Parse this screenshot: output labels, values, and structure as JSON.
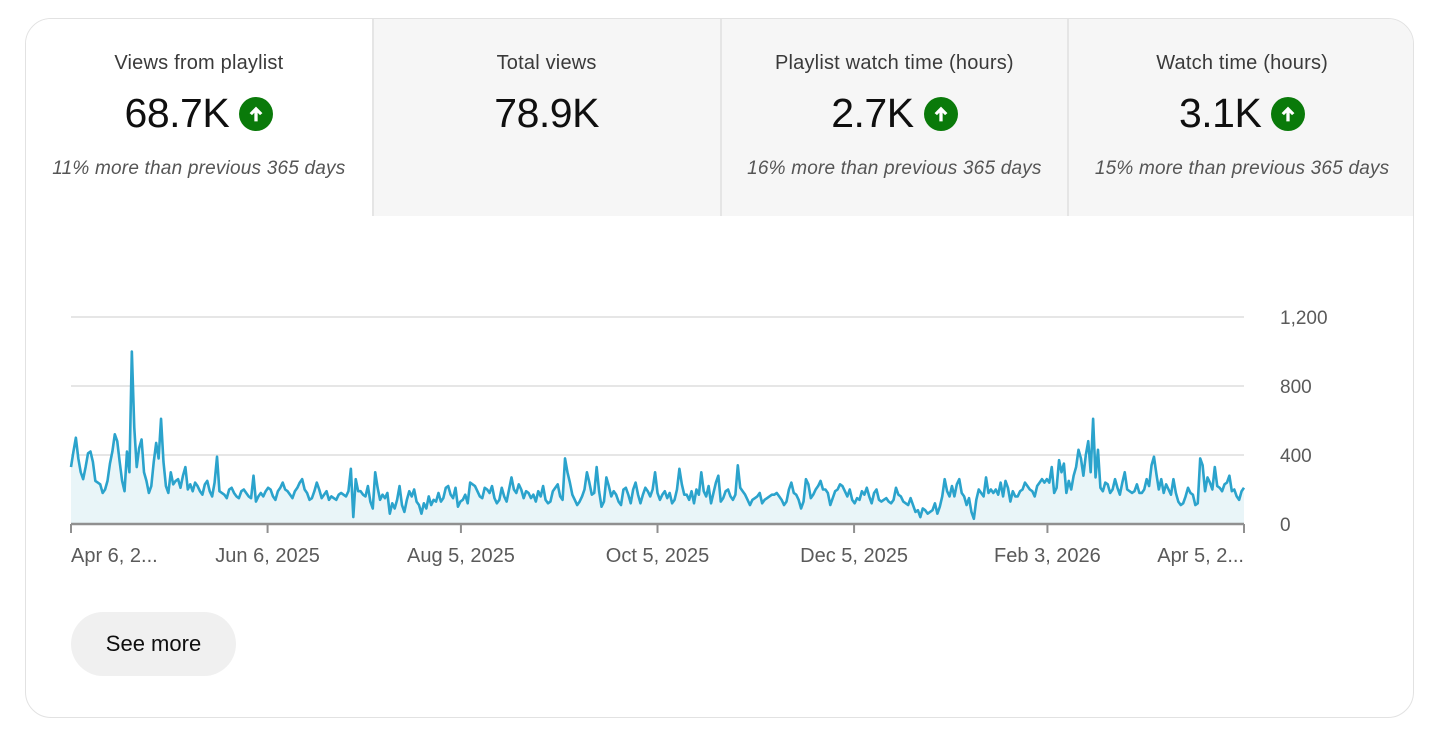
{
  "metrics": [
    {
      "title": "Views from playlist",
      "value": "68.7K",
      "trend": "up",
      "delta": "11% more than previous 365 days",
      "selected": true
    },
    {
      "title": "Total views",
      "value": "78.9K",
      "trend": "none",
      "delta": "",
      "selected": false
    },
    {
      "title": "Playlist watch time (hours)",
      "value": "2.7K",
      "trend": "up",
      "delta": "16% more than previous 365 days",
      "selected": false
    },
    {
      "title": "Watch time (hours)",
      "value": "3.1K",
      "trend": "up",
      "delta": "15% more than previous 365 days",
      "selected": false
    }
  ],
  "see_more_label": "See more",
  "colors": {
    "line": "#2ba3cc",
    "area": "#e9f5f8",
    "trend_up": "#0a7a0a"
  },
  "chart_data": {
    "type": "area",
    "x_start": "2025-04-06",
    "x_end": "2026-04-05",
    "x_tick_labels": [
      "Apr 6, 2...",
      "Jun 6, 2025",
      "Aug 5, 2025",
      "Oct 5, 2025",
      "Dec 5, 2025",
      "Feb 3, 2026",
      "Apr 5, 2..."
    ],
    "x_tick_dates": [
      "2025-04-06",
      "2025-06-06",
      "2025-08-05",
      "2025-10-05",
      "2025-12-05",
      "2026-02-03",
      "2026-04-05"
    ],
    "y_ticks": [
      0,
      400,
      800,
      1200
    ],
    "y_tick_labels": [
      "0",
      "400",
      "800",
      "1,200"
    ],
    "ylim": [
      0,
      1200
    ],
    "grid": true,
    "legend": "none",
    "series": [
      {
        "values": [
          330,
          420,
          500,
          380,
          300,
          260,
          330,
          410,
          420,
          360,
          250,
          240,
          230,
          180,
          200,
          250,
          350,
          420,
          520,
          480,
          360,
          250,
          190,
          420,
          300,
          1000,
          560,
          330,
          440,
          490,
          300,
          250,
          180,
          220,
          360,
          470,
          380,
          610,
          360,
          220,
          180,
          300,
          230,
          250,
          260,
          210,
          280,
          330,
          200,
          230,
          190,
          240,
          220,
          190,
          170,
          230,
          250,
          190,
          160,
          240,
          390,
          190,
          180,
          170,
          150,
          200,
          210,
          180,
          160,
          150,
          190,
          200,
          180,
          160,
          150,
          280,
          130,
          160,
          180,
          160,
          190,
          210,
          200,
          160,
          140,
          190,
          210,
          240,
          200,
          190,
          170,
          150,
          190,
          210,
          240,
          260,
          200,
          180,
          140,
          150,
          190,
          240,
          200,
          150,
          170,
          190,
          140,
          160,
          150,
          140,
          170,
          180,
          170,
          160,
          190,
          320,
          40,
          260,
          190,
          190,
          170,
          160,
          220,
          130,
          90,
          300,
          210,
          140,
          170,
          150,
          180,
          60,
          120,
          90,
          140,
          220,
          110,
          70,
          140,
          190,
          160,
          200,
          130,
          110,
          60,
          120,
          90,
          160,
          110,
          140,
          130,
          180,
          130,
          150,
          210,
          220,
          170,
          150,
          210,
          100,
          130,
          140,
          170,
          120,
          240,
          230,
          220,
          190,
          160,
          150,
          210,
          200,
          180,
          220,
          150,
          120,
          140,
          210,
          160,
          130,
          200,
          270,
          200,
          180,
          230,
          200,
          150,
          190,
          180,
          150,
          170,
          130,
          190,
          160,
          220,
          140,
          120,
          130,
          190,
          210,
          230,
          160,
          140,
          380,
          300,
          240,
          170,
          140,
          110,
          130,
          160,
          200,
          300,
          240,
          170,
          180,
          330,
          190,
          100,
          130,
          270,
          220,
          160,
          190,
          170,
          130,
          110,
          200,
          210,
          170,
          120,
          200,
          240,
          170,
          120,
          170,
          210,
          190,
          160,
          200,
          300,
          180,
          140,
          170,
          190,
          150,
          180,
          120,
          140,
          200,
          320,
          230,
          170,
          170,
          140,
          190,
          120,
          200,
          170,
          300,
          190,
          160,
          220,
          120,
          180,
          240,
          280,
          130,
          150,
          190,
          200,
          160,
          140,
          170,
          340,
          210,
          190,
          170,
          140,
          110,
          140,
          150,
          160,
          180,
          120,
          140,
          150,
          160,
          170,
          170,
          180,
          160,
          140,
          110,
          130,
          200,
          240,
          180,
          170,
          140,
          90,
          130,
          260,
          230,
          150,
          170,
          200,
          220,
          250,
          200,
          200,
          180,
          110,
          150,
          190,
          200,
          230,
          220,
          190,
          160,
          200,
          140,
          120,
          150,
          140,
          190,
          170,
          210,
          160,
          120,
          180,
          200,
          140,
          130,
          140,
          150,
          130,
          120,
          140,
          210,
          170,
          160,
          130,
          120,
          110,
          150,
          110,
          70,
          80,
          40,
          90,
          80,
          60,
          70,
          80,
          120,
          60,
          100,
          160,
          260,
          190,
          160,
          220,
          160,
          230,
          260,
          180,
          160,
          110,
          150,
          70,
          30,
          140,
          200,
          180,
          160,
          270,
          180,
          200,
          180,
          200,
          170,
          240,
          160,
          250,
          210,
          130,
          190,
          160,
          160,
          190,
          200,
          240,
          220,
          200,
          190,
          160,
          220,
          240,
          260,
          240,
          260,
          240,
          330,
          180,
          210,
          370,
          300,
          350,
          180,
          250,
          200,
          280,
          330,
          430,
          380,
          280,
          400,
          480,
          300,
          610,
          270,
          430,
          210,
          190,
          240,
          230,
          180,
          200,
          260,
          210,
          170,
          240,
          300,
          200,
          190,
          180,
          190,
          230,
          180,
          180,
          200,
          260,
          220,
          340,
          390,
          290,
          200,
          260,
          180,
          230,
          200,
          170,
          260,
          180,
          130,
          110,
          120,
          160,
          210,
          180,
          170,
          110,
          120,
          380,
          340,
          190,
          270,
          240,
          200,
          330,
          220,
          210,
          190,
          230,
          240,
          280,
          190,
          200,
          160,
          140,
          190,
          210
        ]
      }
    ]
  }
}
